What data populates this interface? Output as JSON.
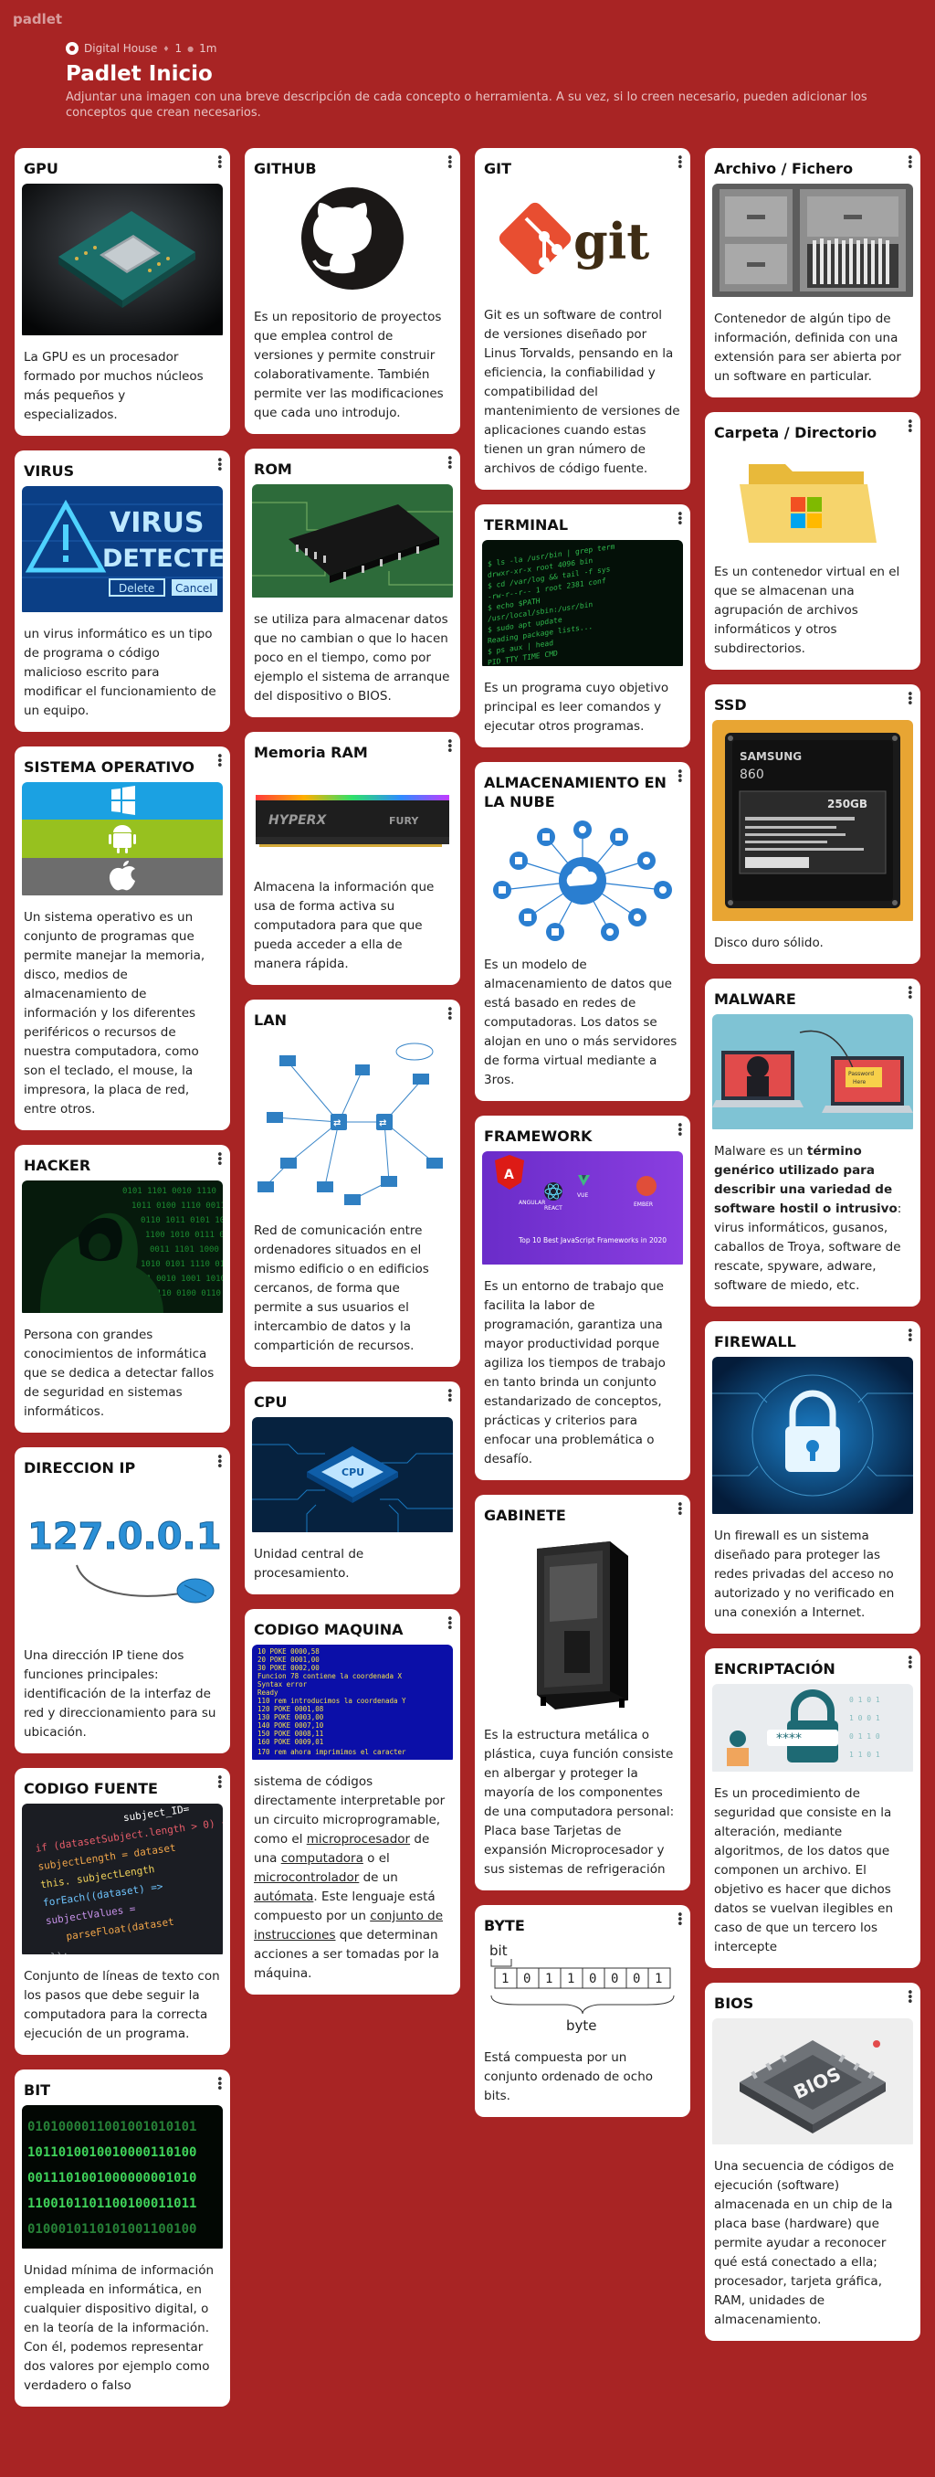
{
  "brand": "padlet",
  "header": {
    "author": "Digital House",
    "likes": "1",
    "age": "1m",
    "title": "Padlet Inicio",
    "description": "Adjuntar una imagen con una breve descripción de cada concepto o herramienta. A su vez, si lo creen necesario, pueden adicionar los conceptos que crean necesarios."
  },
  "cards": {
    "gpu": {
      "title": "GPU",
      "text": "La GPU es un procesador formado por muchos núcleos más pequeños y especializados."
    },
    "virus": {
      "title": "VIRUS",
      "text": "un virus informático es un tipo de programa o código malicioso escrito para modificar el funcionamiento de un equipo.",
      "img_text": [
        "VIRUS",
        "DETECTED",
        "Delete",
        "Cancel"
      ]
    },
    "so": {
      "title": "SISTEMA OPERATIVO",
      "text": "Un sistema operativo es un conjunto de programas que permite manejar la memoria, disco, medios de almacenamiento de información y los diferentes periféricos o recursos de nuestra computadora, como son el teclado, el mouse, la impresora, la placa de red, entre otros."
    },
    "hacker": {
      "title": "HACKER",
      "text": "Persona con grandes conocimientos de informática que se dedica a detectar fallos de seguridad en sistemas informáticos."
    },
    "ip": {
      "title": "DIRECCION IP",
      "text": "Una dirección IP tiene dos funciones principales: identificación de la interfaz de red y direccionamiento para su ubicación.",
      "img_text": "127.0.0.1"
    },
    "codigo_fuente": {
      "title": "CODIGO FUENTE",
      "text": "Conjunto de líneas de texto con los pasos que debe seguir la computadora para la correcta ejecución de un programa.",
      "img_text": [
        "subject_ID=",
        "subjectLength",
        "forEach((dataset) =>",
        "parseFloat(dataset"
      ]
    },
    "bit": {
      "title": "BIT",
      "text": "Unidad mínima de información empleada en informática, en cualquier dispositivo digital, o en la teoría de la información. Con él, podemos representar dos valores por ejemplo como verdadero o falso",
      "img_text": [
        "0101000011001001010101",
        "1011010010010000110100",
        "0011101001000000001010",
        "1100101101100100011011",
        "0100010110101001100100"
      ]
    },
    "github": {
      "title": "GITHUB",
      "text": "Es un repositorio de proyectos que emplea control de versiones y permite construir colaborativamente. También permite ver las modificaciones que cada uno introdujo."
    },
    "rom": {
      "title": "ROM",
      "text": "se utiliza para almacenar datos que no cambian o que lo hacen poco en el tiempo, como por ejemplo el sistema de arranque del dispositivo o BIOS."
    },
    "ram": {
      "title": "Memoria RAM",
      "text": "Almacena la información que usa de forma activa su computadora para que que pueda acceder a ella de manera rápida.",
      "img_text": [
        "HYPERX",
        "FURY"
      ]
    },
    "lan": {
      "title": "LAN",
      "text": "Red de comunicación entre ordenadores situados en el mismo edificio o en edificios cercanos, de forma que permite a sus usuarios el intercambio de datos y la compartición de recursos."
    },
    "cpu": {
      "title": "CPU",
      "text": "Unidad central de procesamiento.",
      "img_text": "CPU"
    },
    "codigo_maquina": {
      "title": "CODIGO MAQUINA",
      "img_text": [
        "10 POKE 0000,58",
        "20 POKE 0001,00",
        "30 POKE 0002,00",
        "Funcion 78 contiene la coordenada X",
        "Syntax error",
        "Ready",
        "110 rem introducimos la coordenada Y",
        "120 POKE 0001,08",
        "130 POKE 0003,00",
        "140 POKE 0007,10",
        "150 POKE 0008,11",
        "160 POKE 0009,01",
        "170 rem ahora imprimimos el caracter"
      ],
      "text": {
        "t1": "sistema de códigos directamente interpretable por un circuito microprogramable, como el ",
        "l1": "microprocesador",
        "t2": " de una ",
        "l2": "computadora",
        "t3": " o el ",
        "l3": "microcontrolador",
        "t4": " de un ",
        "l4": "autómata",
        "t5": ". Este lenguaje está compuesto por un ",
        "l5": "conjunto de instrucciones",
        "t6": " que determinan acciones a ser tomadas por la máquina."
      }
    },
    "git": {
      "title": "GIT",
      "text": "Git es un software de control de versiones diseñado por Linus Torvalds, pensando en la eficiencia, la confiabilidad y compatibilidad del mantenimiento de versiones de aplicaciones cuando estas tienen un gran número de archivos de código fuente.",
      "img_text": "git"
    },
    "terminal": {
      "title": "TERMINAL",
      "text": "Es un programa cuyo objetivo principal es leer comandos y ejecutar otros programas."
    },
    "nube": {
      "title": "ALMACENAMIENTO EN LA NUBE",
      "text": "Es un modelo de almacenamiento de datos que está basado en redes de computadoras. Los datos se alojan en uno o más servidores de forma virtual mediante a 3ros."
    },
    "framework": {
      "title": "FRAMEWORK",
      "text": "Es un entorno de trabajo que facilita la labor de programación, garantiza una mayor productividad porque agiliza los tiempos de trabajo en tanto brinda un conjunto estandarizado de conceptos, prácticas y criterios para enfocar una problemática o desafío.",
      "img_text": [
        "Top 10 Best JavaScript Frameworks in 2020",
        "ANGULAR",
        "VUE",
        "REACT",
        "EMBER"
      ]
    },
    "gabinete": {
      "title": "GABINETE",
      "text": "Es la estructura metálica o plástica, cuya función consiste en albergar y proteger la mayoría de los componentes de una computadora personal: Placa base Tarjetas de expansión Microprocesador y sus sistemas de refrigeración"
    },
    "byte": {
      "title": "BYTE",
      "text": "Está compuesta por un conjunto ordenado de ocho bits.",
      "bit_label": "bit",
      "byte_label": "byte",
      "bits": [
        "1",
        "0",
        "1",
        "1",
        "0",
        "0",
        "0",
        "1"
      ]
    },
    "archivo": {
      "title": "Archivo / Fichero",
      "text": "Contenedor de algún tipo de información, definida con una extensión para ser abierta por un software en particular."
    },
    "carpeta": {
      "title": "Carpeta / Directorio",
      "text": "Es un contenedor virtual en el que se almacenan una agrupación de archivos informáticos y otros subdirectorios."
    },
    "ssd": {
      "title": "SSD",
      "text": "Disco duro sólido.",
      "img_text": [
        "SAMSUNG",
        "250GB",
        "860"
      ]
    },
    "malware": {
      "title": "MALWARE",
      "text": {
        "t1": "Malware es un ",
        "b1": "término genérico utilizado para describir una variedad de software hostil o intrusivo",
        "t2": ": virus informáticos, gusanos, caballos de Troya, software de rescate, spyware, adware, software de miedo, etc."
      },
      "img_text": [
        "Password",
        "Here"
      ]
    },
    "firewall": {
      "title": "FIREWALL",
      "text": "Un firewall es un sistema diseñado para proteger las redes privadas del acceso no autorizado y no verificado en una conexión a Internet."
    },
    "encriptacion": {
      "title": "ENCRIPTACIÓN",
      "text": "Es un procedimiento de seguridad que consiste en la alteración, mediante algoritmos, de los datos que componen un archivo. El objetivo es hacer que dichos datos se vuelvan ilegibles en caso de que un tercero los intercepte",
      "img_text": "****"
    },
    "bios": {
      "title": "BIOS",
      "text": "Una secuencia de códigos de ejecución (software) almacenada en un chip de la placa base (hardware) que permite ayudar a reconocer qué está conectado a ella; procesador, tarjeta gráfica, RAM, unidades de almacenamiento.",
      "img_text": "BIOS"
    }
  }
}
